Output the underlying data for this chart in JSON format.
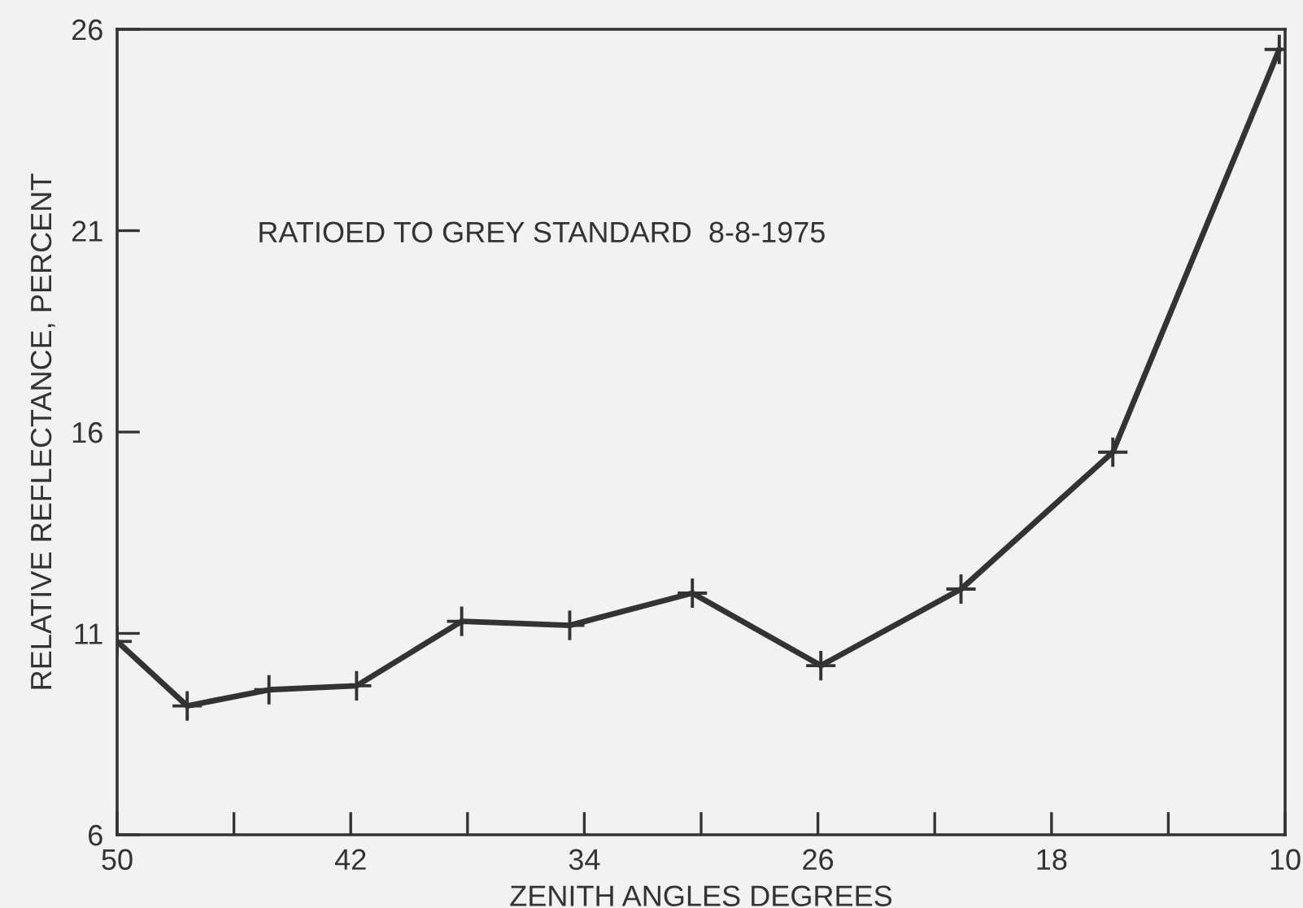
{
  "chart_data": {
    "type": "line",
    "xlabel": "ZENITH ANGLES DEGREES",
    "ylabel": "RELATIVE REFLECTANCE, PERCENT",
    "annotations": [
      "RATIOED TO GREY STANDARD  8-8-1975"
    ],
    "x": [
      50,
      47.6,
      44.8,
      41.8,
      38.2,
      34.5,
      30.3,
      25.9,
      21.1,
      15.9,
      10.2
    ],
    "series": [
      {
        "color": "#333333",
        "values": [
          10.8,
          9.2,
          9.6,
          9.7,
          11.3,
          11.2,
          12.0,
          10.2,
          12.1,
          15.5,
          25.5
        ]
      }
    ],
    "xlim": [
      50,
      10
    ],
    "ylim": [
      6,
      26
    ],
    "xticks": [
      50,
      {
        "value": 46,
        "label": null
      },
      42,
      {
        "value": 38,
        "label": null
      },
      34,
      {
        "value": 30,
        "label": null
      },
      26,
      {
        "value": 22,
        "label": null
      },
      18,
      {
        "value": 14,
        "label": null
      },
      10
    ],
    "yticks": [
      6,
      11,
      16,
      21,
      26
    ],
    "grid": false,
    "legend": false,
    "marker": "cross",
    "line_style": "solid"
  }
}
